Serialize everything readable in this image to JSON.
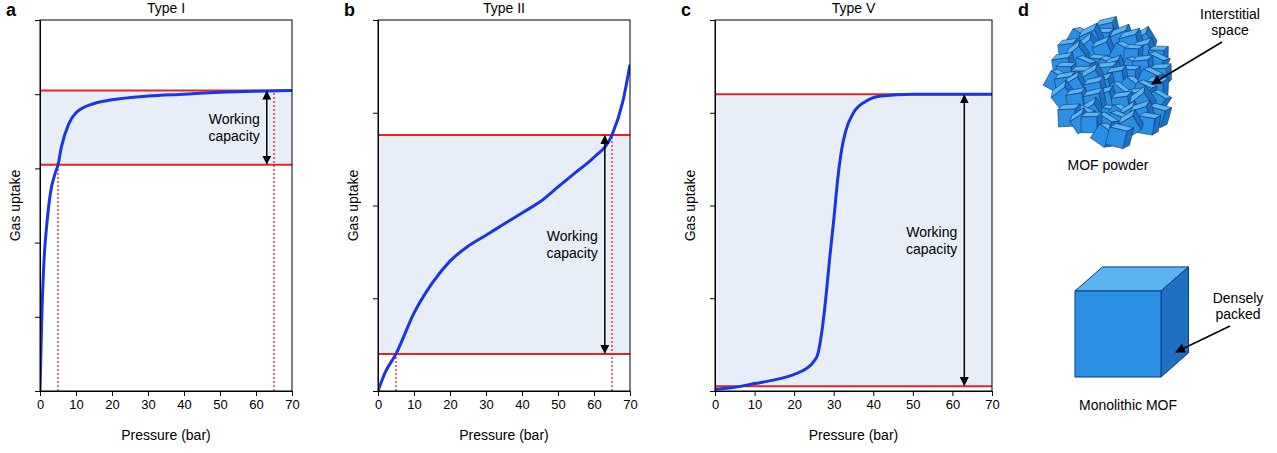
{
  "chart_data": [
    {
      "type": "line",
      "panel_label": "a",
      "title": "Type I",
      "x_label": "Pressure (bar)",
      "y_label": "Gas uptake",
      "xlim": [
        0,
        70
      ],
      "xticks": [
        0,
        10,
        20,
        30,
        40,
        50,
        60,
        70
      ],
      "ylim": [
        0,
        100
      ],
      "yticks": [
        0,
        20,
        40,
        60,
        80,
        100
      ],
      "tick_labels": "x",
      "color": "#1a35e8",
      "x": [
        0,
        0.5,
        1,
        2,
        3,
        4,
        5,
        6,
        8,
        10,
        15,
        20,
        30,
        40,
        50,
        60,
        70
      ],
      "values": [
        0,
        20,
        33,
        46,
        54,
        58,
        61,
        66,
        72,
        75,
        77.5,
        78.5,
        79.5,
        80,
        80.5,
        80.8,
        81
      ],
      "working_capacity": {
        "label": "Working capacity",
        "range": [
          61,
          81
        ],
        "x": [
          5,
          65
        ]
      }
    },
    {
      "type": "line",
      "panel_label": "b",
      "title": "Type II",
      "x_label": "Pressure (bar)",
      "y_label": "Gas uptake",
      "xlim": [
        0,
        70
      ],
      "xticks": [
        0,
        10,
        20,
        30,
        40,
        50,
        60,
        70
      ],
      "ylim": [
        0,
        100
      ],
      "yticks": [
        0,
        25,
        50,
        75,
        100
      ],
      "tick_labels": "x",
      "color": "#1a35e8",
      "x": [
        0,
        2,
        5,
        10,
        15,
        20,
        25,
        30,
        35,
        40,
        45,
        50,
        55,
        60,
        65,
        68,
        70
      ],
      "values": [
        0,
        5,
        10,
        21,
        29,
        35,
        39,
        42,
        45,
        48,
        51,
        55,
        59,
        63,
        69,
        78,
        88
      ],
      "working_capacity": {
        "label": "Working capacity",
        "range": [
          10,
          69
        ],
        "x": [
          5,
          65
        ]
      }
    },
    {
      "type": "line",
      "panel_label": "c",
      "title": "Type V",
      "x_label": "Pressure (bar)",
      "y_label": "Gas uptake",
      "xlim": [
        0,
        70
      ],
      "xticks": [
        0,
        10,
        20,
        30,
        40,
        50,
        60,
        70
      ],
      "ylim": [
        0,
        100
      ],
      "yticks": [
        0,
        25,
        50,
        75,
        100
      ],
      "tick_labels": "x",
      "color": "#1a35e8",
      "x": [
        0,
        5,
        10,
        15,
        20,
        23,
        25,
        26,
        27,
        28,
        29,
        30,
        31,
        32,
        33,
        35,
        38,
        42,
        50,
        60,
        70
      ],
      "values": [
        0.5,
        1,
        2,
        3,
        4.5,
        6,
        8,
        10,
        16,
        25,
        36,
        46,
        57,
        65,
        70,
        75,
        78,
        79.5,
        80,
        80,
        80
      ],
      "working_capacity": {
        "label": "Working capacity",
        "range": [
          1.3,
          80
        ]
      }
    }
  ],
  "diagram": {
    "panel_label": "d",
    "powder": {
      "label": "MOF powder",
      "callout": "Interstitial space"
    },
    "monolith": {
      "label": "Monolithic MOF",
      "callout": "Densely packed"
    }
  }
}
